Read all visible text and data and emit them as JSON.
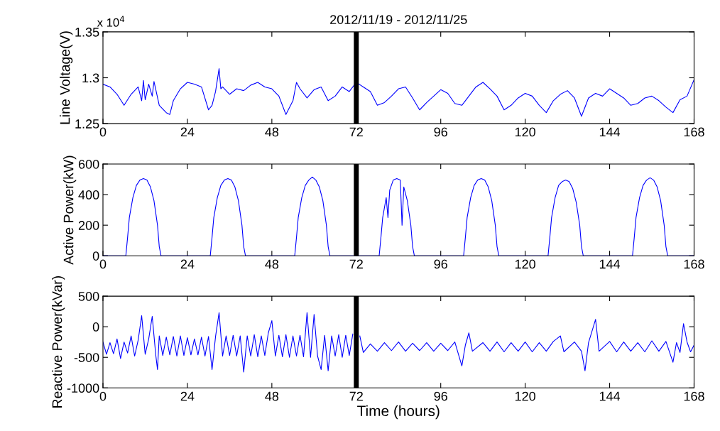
{
  "chart_data": [
    {
      "type": "line",
      "title": "2012/11/19 - 2012/11/25",
      "ylabel": "Line Voltage(V)",
      "annotations": [
        "x 10$^{4}$"
      ],
      "series": [
        {
          "color": "#0000ff",
          "x": [
            0,
            2,
            4,
            6,
            8,
            10,
            11,
            11.5,
            12,
            13,
            14,
            14.5,
            16,
            18,
            19,
            20,
            22,
            24,
            26,
            28,
            30,
            31,
            32,
            33,
            33.5,
            34,
            36,
            38,
            40,
            42,
            44,
            46,
            48,
            50,
            52,
            54,
            55,
            56,
            58,
            60,
            62,
            64,
            66,
            68,
            70,
            72,
            74,
            76,
            78,
            80,
            82,
            84,
            86,
            88,
            90,
            92,
            94,
            96,
            98,
            100,
            102,
            104,
            106,
            108,
            110,
            112,
            114,
            116,
            118,
            120,
            122,
            124,
            126,
            128,
            130,
            132,
            134,
            136,
            138,
            140,
            142,
            144,
            146,
            148,
            150,
            152,
            154,
            156,
            158,
            160,
            162,
            164,
            166,
            168
          ],
          "values": [
            1.293,
            1.29,
            1.282,
            1.27,
            1.282,
            1.29,
            1.275,
            1.297,
            1.276,
            1.293,
            1.28,
            1.296,
            1.27,
            1.262,
            1.26,
            1.275,
            1.288,
            1.295,
            1.293,
            1.29,
            1.265,
            1.27,
            1.285,
            1.31,
            1.288,
            1.29,
            1.282,
            1.288,
            1.286,
            1.292,
            1.295,
            1.29,
            1.288,
            1.28,
            1.26,
            1.275,
            1.295,
            1.288,
            1.278,
            1.287,
            1.29,
            1.275,
            1.28,
            1.29,
            1.285,
            1.295,
            1.29,
            1.285,
            1.27,
            1.273,
            1.28,
            1.288,
            1.29,
            1.278,
            1.265,
            1.273,
            1.28,
            1.287,
            1.283,
            1.272,
            1.27,
            1.28,
            1.29,
            1.295,
            1.288,
            1.28,
            1.265,
            1.27,
            1.278,
            1.283,
            1.28,
            1.27,
            1.262,
            1.275,
            1.282,
            1.286,
            1.278,
            1.258,
            1.278,
            1.283,
            1.28,
            1.288,
            1.283,
            1.278,
            1.27,
            1.272,
            1.278,
            1.28,
            1.275,
            1.268,
            1.262,
            1.276,
            1.28,
            1.298
          ]
        }
      ],
      "xlim": [
        0,
        168
      ],
      "xticks": [
        0,
        24,
        48,
        72,
        96,
        120,
        144,
        168
      ],
      "ylim": [
        1.25,
        1.35
      ],
      "yticks": [
        1.25,
        1.3,
        1.35
      ],
      "ref_lines": [
        {
          "axis": "x",
          "value": 72,
          "color": "#000000"
        }
      ],
      "grid": false,
      "legend": false
    },
    {
      "type": "line",
      "ylabel": "Active Power(kW)",
      "series": [
        {
          "color": "#0000ff",
          "x": [
            0,
            6.5,
            7,
            7.5,
            8.5,
            9.5,
            10.5,
            11.5,
            12.5,
            13.5,
            14.5,
            15.5,
            16,
            16.5,
            30.5,
            31,
            31.5,
            32.5,
            33.5,
            34.5,
            35.5,
            36.5,
            37.5,
            38.5,
            39.5,
            40,
            40.5,
            54.5,
            55,
            55.5,
            56.5,
            57.5,
            58.5,
            59.5,
            60.5,
            61.5,
            62.5,
            63.5,
            64,
            64.5,
            78.5,
            79,
            79.5,
            80.5,
            81,
            81.5,
            82.5,
            83.5,
            84.5,
            85,
            85.5,
            86.5,
            87.5,
            88,
            88.5,
            102.5,
            103,
            103.5,
            104.5,
            105.5,
            106.5,
            107.5,
            108.5,
            109.5,
            110.5,
            111.5,
            112,
            112.5,
            126.5,
            127,
            127.5,
            128.5,
            129.5,
            130.5,
            131.5,
            132.5,
            133.5,
            134.5,
            135.5,
            136,
            136.5,
            150.5,
            151,
            151.5,
            152.5,
            153.5,
            154.5,
            155.5,
            156.5,
            157.5,
            158.5,
            159.5,
            160,
            160.5,
            168
          ],
          "values": [
            0,
            0,
            120,
            250,
            380,
            460,
            495,
            505,
            495,
            450,
            360,
            200,
            60,
            0,
            0,
            120,
            250,
            380,
            460,
            495,
            505,
            495,
            450,
            360,
            200,
            60,
            0,
            0,
            120,
            250,
            380,
            460,
            495,
            515,
            495,
            450,
            360,
            200,
            60,
            0,
            0,
            120,
            250,
            380,
            250,
            430,
            495,
            505,
            495,
            200,
            450,
            360,
            200,
            60,
            0,
            0,
            120,
            250,
            380,
            460,
            495,
            505,
            495,
            450,
            360,
            200,
            60,
            0,
            0,
            120,
            250,
            380,
            460,
            485,
            495,
            485,
            440,
            350,
            200,
            60,
            0,
            0,
            120,
            250,
            380,
            460,
            495,
            510,
            495,
            450,
            360,
            200,
            60,
            0,
            0
          ]
        }
      ],
      "xlim": [
        0,
        168
      ],
      "xticks": [
        0,
        24,
        48,
        72,
        96,
        120,
        144,
        168
      ],
      "ylim": [
        0,
        600
      ],
      "yticks": [
        0,
        200,
        400,
        600
      ],
      "ref_lines": [
        {
          "axis": "x",
          "value": 72,
          "color": "#000000"
        }
      ],
      "grid": false,
      "legend": false
    },
    {
      "type": "line",
      "ylabel": "Reactive Power(kVar)",
      "xlabel": "Time (hours)",
      "series": [
        {
          "color": "#0000ff",
          "x": [
            0,
            1,
            2,
            3,
            4,
            5,
            6,
            7,
            8,
            9,
            10,
            11,
            12,
            13,
            14,
            15,
            15.5,
            16,
            17,
            18,
            19,
            20,
            21,
            22,
            23,
            24,
            25,
            26,
            27,
            28,
            29,
            30,
            31,
            32,
            33,
            34,
            35,
            36,
            37,
            38,
            39,
            40,
            41,
            42,
            43,
            44,
            45,
            46,
            47,
            48,
            49,
            50,
            51,
            52,
            53,
            54,
            55,
            56,
            57,
            58,
            59,
            60,
            61,
            62,
            63,
            64,
            65,
            66,
            67,
            68,
            69,
            70,
            71,
            72,
            73,
            74,
            76,
            78,
            80,
            82,
            84,
            86,
            88,
            90,
            92,
            94,
            96,
            98,
            100,
            102,
            103,
            104,
            105,
            108,
            110,
            112,
            114,
            116,
            118,
            120,
            122,
            124,
            126,
            128,
            130,
            131,
            134,
            136,
            137,
            138,
            140,
            141,
            144,
            146,
            148,
            150,
            152,
            154,
            156,
            158,
            160,
            162,
            163,
            164,
            165,
            166,
            167,
            168
          ],
          "values": [
            -250,
            -450,
            -260,
            -440,
            -200,
            -520,
            -250,
            -430,
            -150,
            -480,
            -220,
            180,
            -450,
            -200,
            170,
            -460,
            -700,
            -150,
            -470,
            -170,
            -460,
            -160,
            -480,
            -150,
            -470,
            -180,
            -460,
            -200,
            -460,
            -170,
            -480,
            -160,
            -700,
            -160,
            230,
            -480,
            -150,
            -470,
            -140,
            -480,
            -150,
            -740,
            -150,
            -480,
            -130,
            -490,
            -150,
            -470,
            -100,
            100,
            -480,
            -140,
            -490,
            -130,
            -500,
            -150,
            -480,
            -140,
            -490,
            230,
            -500,
            200,
            -480,
            -700,
            -140,
            -720,
            -150,
            -480,
            -130,
            -500,
            -140,
            -470,
            -120,
            null,
            -150,
            -420,
            -280,
            -400,
            -260,
            -390,
            -250,
            -400,
            -270,
            -390,
            -260,
            -400,
            -270,
            -390,
            -250,
            -640,
            -300,
            -100,
            -400,
            -260,
            -400,
            -250,
            -410,
            -260,
            -400,
            -250,
            -410,
            -260,
            -400,
            -240,
            -150,
            -410,
            -250,
            -400,
            -720,
            -260,
            120,
            -400,
            -240,
            -410,
            -250,
            -400,
            -260,
            -410,
            -230,
            -400,
            -240,
            -580,
            -260,
            -420,
            50,
            -250,
            -410,
            -300
          ]
        }
      ],
      "xlim": [
        0,
        168
      ],
      "xticks": [
        0,
        24,
        48,
        72,
        96,
        120,
        144,
        168
      ],
      "ylim": [
        -1000,
        500
      ],
      "yticks": [
        -1000,
        -500,
        0,
        500
      ],
      "ref_lines": [
        {
          "axis": "x",
          "value": 72,
          "color": "#000000"
        }
      ],
      "grid": false,
      "legend": false
    }
  ]
}
